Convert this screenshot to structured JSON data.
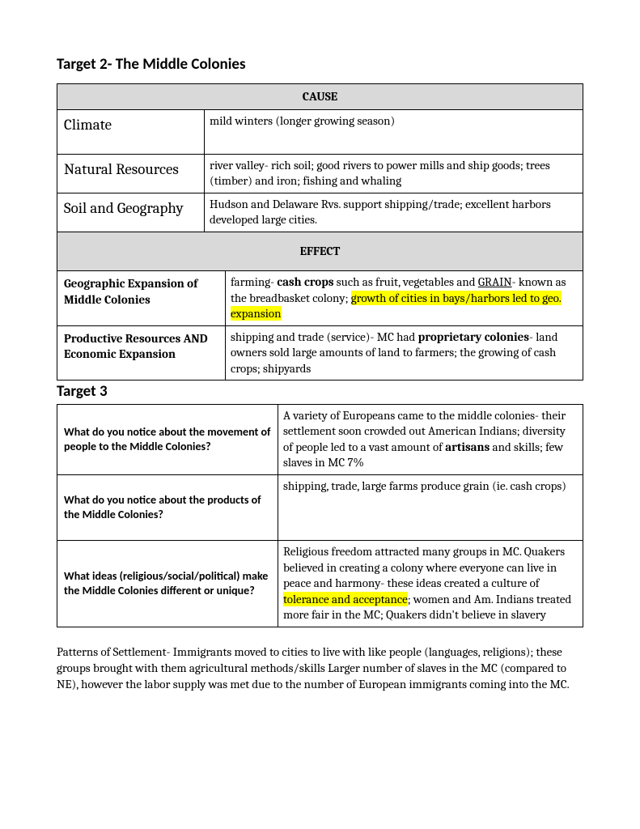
{
  "title": "Target 2- The Middle Colonies",
  "cause": {
    "header": "CAUSE",
    "rows": [
      {
        "label": "Climate",
        "text": "mild winters (longer growing season)"
      },
      {
        "label": "Natural Resources",
        "text": "river valley- rich soil; good rivers to power mills and ship goods; trees (timber) and iron; fishing and whaling"
      },
      {
        "label": "Soil and Geography",
        "text": "Hudson and Delaware Rvs. support shipping/trade; excellent harbors developed large cities."
      }
    ]
  },
  "effect": {
    "header": "EFFECT",
    "rows": [
      {
        "label": "Geographic Expansion of Middle Colonies",
        "segments": [
          {
            "t": "farming- "
          },
          {
            "t": "cash crops",
            "bold": true
          },
          {
            "t": " such as fruit, vegetables and "
          },
          {
            "t": "GRAIN",
            "under": true
          },
          {
            "t": "- known as the breadbasket colony; "
          },
          {
            "t": "growth of cities in bays/harbors led to geo. expansion",
            "hl": true
          }
        ]
      },
      {
        "label": "Productive Resources AND Economic Expansion",
        "segments": [
          {
            "t": "shipping and trade (service)- MC had "
          },
          {
            "t": "proprietary colonies",
            "bold": true
          },
          {
            "t": "- land owners sold large amounts of land to farmers; the growing of cash crops; shipyards"
          }
        ]
      }
    ]
  },
  "target3": {
    "header": "Target 3",
    "rows": [
      {
        "q": "What do you notice about the movement of people to the Middle Colonies?",
        "segments": [
          {
            "t": "A variety of Europeans came to the middle colonies- their settlement soon crowded out American Indians; diversity of people led to a vast amount of "
          },
          {
            "t": "artisans",
            "bold": true
          },
          {
            "t": " and skills; few slaves in MC 7%"
          }
        ]
      },
      {
        "q": "What do you notice about the products of the Middle Colonies?",
        "segments": [
          {
            "t": "shipping, trade, large farms produce grain (ie. cash crops)"
          }
        ],
        "tall": true
      },
      {
        "q": "What ideas (religious/social/political) make the Middle Colonies different or unique?",
        "segments": [
          {
            "t": "Religious freedom attracted many groups in MC.       Quakers believed in creating a colony where everyone can live in peace and harmony- these ideas created a culture of "
          },
          {
            "t": "tolerance and acceptance",
            "hl": true
          },
          {
            "t": "; women and Am. Indians treated more fair in the MC; Quakers didn't believe in slavery"
          }
        ]
      }
    ]
  },
  "footer": "Patterns of Settlement-  Immigrants moved to cities to live with like people (languages, religions); these groups brought with them agricultural methods/skills Larger number of slaves in the MC (compared to NE), however the labor supply was met due to the number of European immigrants coming into the MC."
}
